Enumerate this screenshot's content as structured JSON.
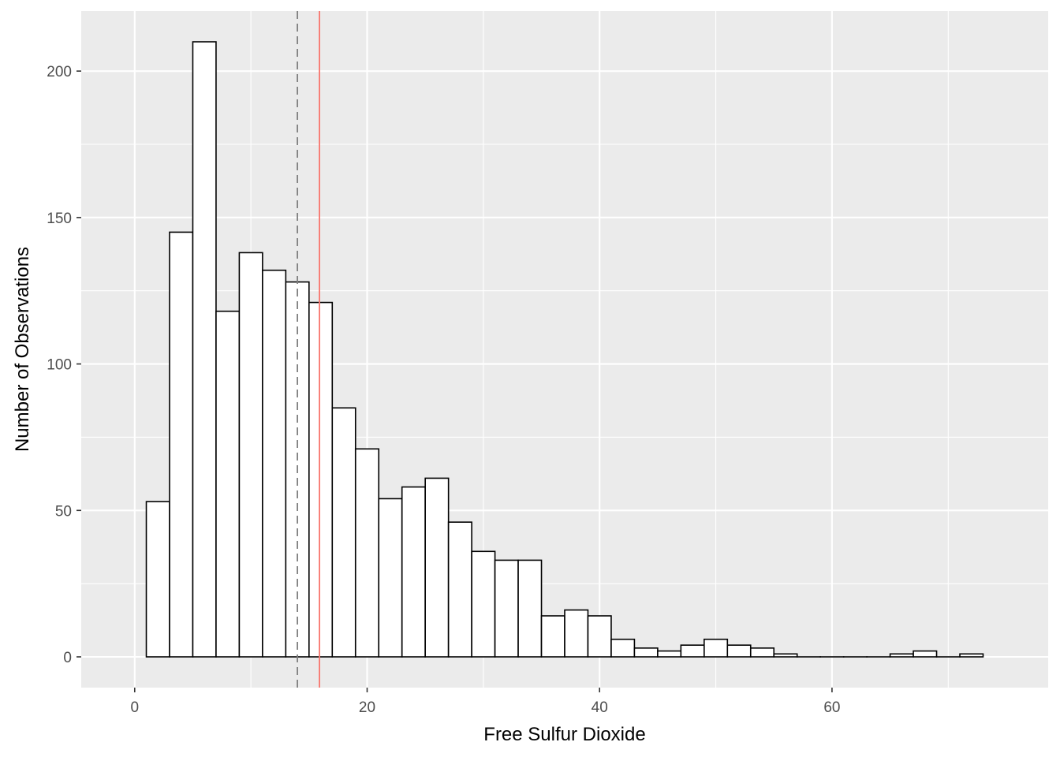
{
  "chart_data": {
    "type": "bar",
    "subtype": "histogram",
    "title": "",
    "xlabel": "Free Sulfur Dioxide",
    "ylabel": "Number of Observations",
    "xlim": [
      -4.6,
      78.6
    ],
    "ylim": [
      -10.5,
      220.5
    ],
    "x_ticks": [
      0,
      20,
      40,
      60
    ],
    "x_tick_labels": [
      "0",
      "20",
      "40",
      "60"
    ],
    "y_ticks": [
      0,
      50,
      100,
      150,
      200
    ],
    "y_tick_labels": [
      "0",
      "50",
      "100",
      "150",
      "200"
    ],
    "grid": true,
    "bin_width": 2,
    "bin_centers": [
      2,
      4,
      6,
      8,
      10,
      12,
      14,
      16,
      18,
      20,
      22,
      24,
      26,
      28,
      30,
      32,
      34,
      36,
      38,
      40,
      42,
      44,
      46,
      48,
      50,
      52,
      54,
      56,
      58,
      60,
      62,
      64,
      66,
      68,
      70,
      72
    ],
    "counts": [
      53,
      145,
      210,
      118,
      138,
      132,
      128,
      121,
      85,
      71,
      54,
      58,
      61,
      46,
      36,
      33,
      33,
      14,
      16,
      14,
      6,
      3,
      2,
      4,
      6,
      4,
      3,
      1,
      0,
      0,
      0,
      0,
      1,
      2,
      0,
      1
    ],
    "reference_lines": [
      {
        "x": 14,
        "style": "dashed",
        "color": "#7f7f7f"
      },
      {
        "x": 15.9,
        "style": "solid",
        "color": "#f8766d"
      }
    ],
    "colors": {
      "panel_background": "#ebebeb",
      "grid_major": "#ffffff",
      "bar_fill": "#ffffff",
      "bar_outline": "#000000"
    }
  }
}
